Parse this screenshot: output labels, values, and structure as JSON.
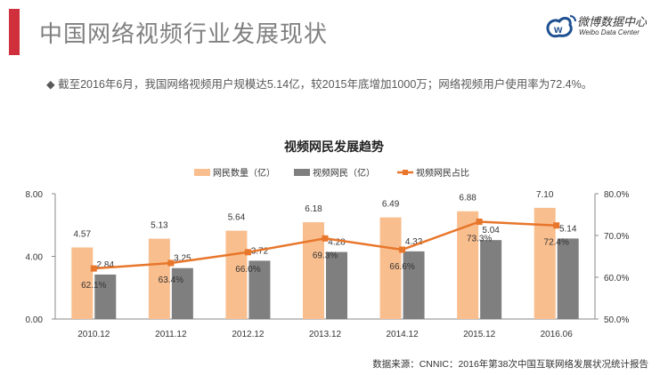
{
  "header": {
    "title": "中国网络视频行业发展现状",
    "logo_cn": "微博数据中心",
    "logo_en": "Weibo Data Center",
    "accent": "#d0303c"
  },
  "summary": "◆ 截至2016年6月，我国网络视频用户规模达5.14亿，较2015年底增加1000万；网络视频用户使用率为72.4%。",
  "source": "数据来源：CNNIC：2016年第38次中国互联网络发展状况统计报告",
  "chart_data": {
    "type": "bar",
    "title": "视频网民发展趋势",
    "categories": [
      "2010.12",
      "2011.12",
      "2012.12",
      "2013.12",
      "2014.12",
      "2015.12",
      "2016.06"
    ],
    "series": [
      {
        "name": "网民数量（亿）",
        "type": "bar",
        "axis": "left",
        "color": "#f9be8e",
        "values": [
          4.57,
          5.13,
          5.64,
          6.18,
          6.49,
          6.88,
          7.1
        ],
        "labels": [
          "4.57",
          "5.13",
          "5.64",
          "6.18",
          "6.49",
          "6.88",
          "7.10"
        ]
      },
      {
        "name": "视频网民（亿）",
        "type": "bar",
        "axis": "left",
        "color": "#7f7f7f",
        "values": [
          2.84,
          3.25,
          3.72,
          4.28,
          4.32,
          5.04,
          5.14
        ],
        "labels": [
          "2.84",
          "3.25",
          "3.72",
          "4.28",
          "4.32",
          "5.04",
          "5.14"
        ]
      },
      {
        "name": "视频网民占比",
        "type": "line",
        "axis": "right",
        "color": "#e8762b",
        "values": [
          62.1,
          63.4,
          66.0,
          69.3,
          66.6,
          73.3,
          72.4
        ],
        "labels": [
          "62.1%",
          "63.4%",
          "66.0%",
          "69.3%",
          "66.6%",
          "73.3%",
          "72.4%"
        ]
      }
    ],
    "left_axis": {
      "ylim": [
        0,
        8
      ],
      "ticks": [
        "0.00",
        "4.00",
        "8.00"
      ]
    },
    "right_axis": {
      "ylim": [
        50,
        80
      ],
      "ticks": [
        "50.0%",
        "60.0%",
        "70.0%",
        "80.0%"
      ]
    },
    "legend": "top",
    "grid": false
  }
}
